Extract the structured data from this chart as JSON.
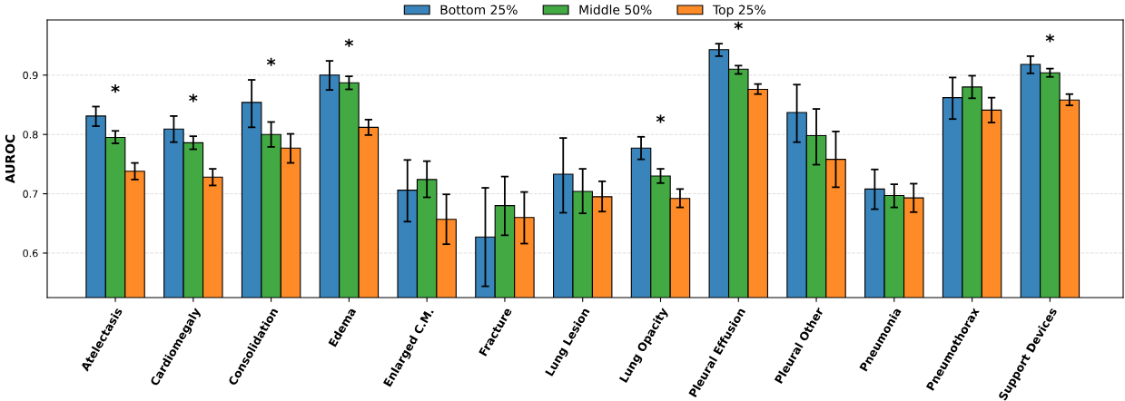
{
  "chart_data": {
    "type": "bar",
    "ylabel": "AUROC",
    "categories": [
      "Atelectasis",
      "Cardiomegaly",
      "Consolidation",
      "Edema",
      "Enlarged C.M.",
      "Fracture",
      "Lung Lesion",
      "Lung Opacity",
      "Pleural Effusion",
      "Pleural Other",
      "Pneumonia",
      "Pneumothorax",
      "Support Devices"
    ],
    "series": [
      {
        "name": "Bottom 25%",
        "color": "#3a84bc",
        "values": [
          0.831,
          0.809,
          0.854,
          0.9,
          0.706,
          0.627,
          0.733,
          0.777,
          0.943,
          0.837,
          0.708,
          0.862,
          0.918
        ],
        "errors": [
          [
            0.814,
            0.847
          ],
          [
            0.787,
            0.831
          ],
          [
            0.812,
            0.892
          ],
          [
            0.875,
            0.924
          ],
          [
            0.653,
            0.757
          ],
          [
            0.544,
            0.71
          ],
          [
            0.668,
            0.794
          ],
          [
            0.758,
            0.796
          ],
          [
            0.932,
            0.953
          ],
          [
            0.787,
            0.884
          ],
          [
            0.674,
            0.741
          ],
          [
            0.826,
            0.896
          ],
          [
            0.903,
            0.932
          ]
        ]
      },
      {
        "name": "Middle 50%",
        "color": "#43aa43",
        "values": [
          0.795,
          0.786,
          0.8,
          0.887,
          0.724,
          0.68,
          0.704,
          0.73,
          0.91,
          0.798,
          0.697,
          0.88,
          0.904
        ],
        "errors": [
          [
            0.785,
            0.806
          ],
          [
            0.775,
            0.797
          ],
          [
            0.779,
            0.821
          ],
          [
            0.876,
            0.898
          ],
          [
            0.694,
            0.755
          ],
          [
            0.63,
            0.729
          ],
          [
            0.667,
            0.742
          ],
          [
            0.718,
            0.742
          ],
          [
            0.902,
            0.916
          ],
          [
            0.749,
            0.843
          ],
          [
            0.677,
            0.716
          ],
          [
            0.861,
            0.899
          ],
          [
            0.897,
            0.911
          ]
        ]
      },
      {
        "name": "Top 25%",
        "color": "#fe8b27",
        "values": [
          0.738,
          0.728,
          0.777,
          0.812,
          0.657,
          0.66,
          0.695,
          0.692,
          0.876,
          0.758,
          0.693,
          0.841,
          0.858
        ],
        "errors": [
          [
            0.724,
            0.752
          ],
          [
            0.714,
            0.742
          ],
          [
            0.752,
            0.801
          ],
          [
            0.799,
            0.825
          ],
          [
            0.615,
            0.699
          ],
          [
            0.616,
            0.703
          ],
          [
            0.67,
            0.721
          ],
          [
            0.677,
            0.708
          ],
          [
            0.868,
            0.885
          ],
          [
            0.711,
            0.805
          ],
          [
            0.669,
            0.717
          ],
          [
            0.82,
            0.862
          ],
          [
            0.849,
            0.868
          ]
        ]
      }
    ],
    "ylim": [
      0.525,
      0.993
    ],
    "yticks": [
      0.6,
      0.7,
      0.8,
      0.9
    ],
    "grid": "y",
    "legend": "top",
    "annotations": [
      {
        "text": "*",
        "x": "Atelectasis",
        "y": 0.847
      },
      {
        "text": "*",
        "x": "Cardiomegaly",
        "y": 0.831
      },
      {
        "text": "*",
        "x": "Consolidation",
        "y": 0.892
      },
      {
        "text": "*",
        "x": "Edema",
        "y": 0.924
      },
      {
        "text": "*",
        "x": "Lung Opacity",
        "y": 0.796
      },
      {
        "text": "*",
        "x": "Pleural Effusion",
        "y": 0.953
      },
      {
        "text": "*",
        "x": "Support Devices",
        "y": 0.932
      }
    ]
  }
}
